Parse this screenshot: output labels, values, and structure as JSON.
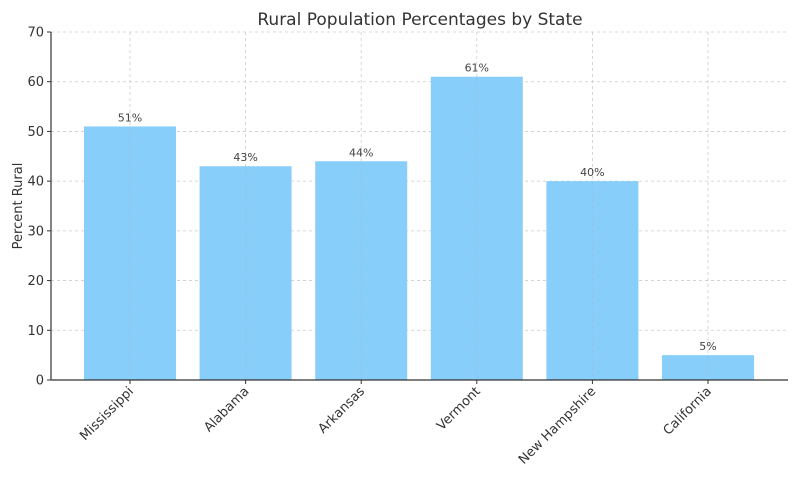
{
  "chart_data": {
    "type": "bar",
    "title": "Rural Population Percentages by State",
    "xlabel": "",
    "ylabel": "Percent Rural",
    "categories": [
      "Mississippi",
      "Alabama",
      "Arkansas",
      "Vermont",
      "New Hampshire",
      "California"
    ],
    "values": [
      51,
      43,
      44,
      61,
      40,
      5
    ],
    "bar_labels": [
      "51%",
      "43%",
      "44%",
      "61%",
      "40%",
      "5%"
    ],
    "ylim": [
      0,
      70
    ],
    "yticks": [
      0,
      10,
      20,
      30,
      40,
      50,
      60,
      70
    ],
    "grid": true,
    "legend": null,
    "bar_color": "#87CEFA",
    "xtick_rotation": 45
  }
}
